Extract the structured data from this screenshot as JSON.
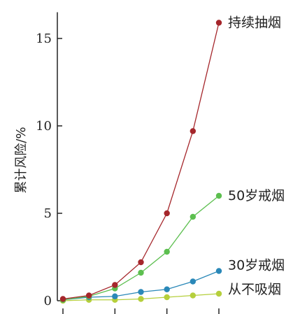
{
  "chart_data": {
    "type": "line",
    "title": "",
    "xlabel": "",
    "ylabel": "累计风险/%",
    "ylim": [
      0,
      16.5
    ],
    "yticks": [
      0,
      5,
      10,
      15
    ],
    "ytick_labels": [
      "0",
      "5",
      "10",
      "15"
    ],
    "x": [
      0,
      1,
      2,
      3,
      4,
      5,
      6
    ],
    "xlim": [
      0,
      6
    ],
    "x_tick_positions": [
      0,
      2,
      4,
      6
    ],
    "grid": false,
    "legend": "labels at right end of each line",
    "series": [
      {
        "name": "持续抽烟",
        "color": "#a5262b",
        "values": [
          0.1,
          0.3,
          0.9,
          2.2,
          5.0,
          9.7,
          15.9
        ]
      },
      {
        "name": "50岁戒烟",
        "color": "#5cbf4f",
        "values": [
          0.05,
          0.25,
          0.7,
          1.6,
          2.8,
          4.8,
          6.0
        ]
      },
      {
        "name": "30岁戒烟",
        "color": "#2a88b8",
        "values": [
          0.05,
          0.2,
          0.25,
          0.5,
          0.65,
          1.1,
          1.7
        ]
      },
      {
        "name": "从不吸烟",
        "color": "#b5cf3c",
        "values": [
          0.0,
          0.05,
          0.05,
          0.1,
          0.2,
          0.3,
          0.4
        ]
      }
    ]
  }
}
